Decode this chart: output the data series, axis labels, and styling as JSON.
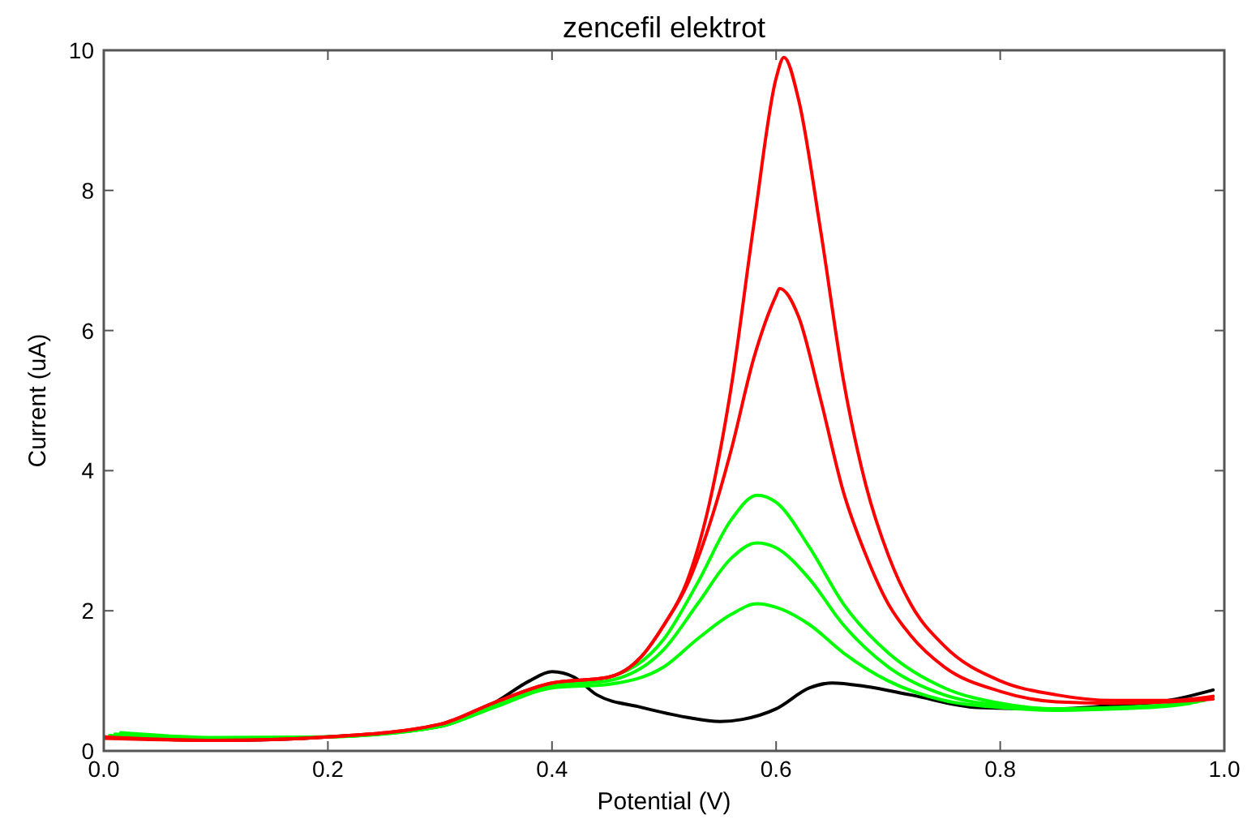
{
  "chart_data": {
    "type": "line",
    "title": "zencefil elektrot",
    "xlabel": "Potential (V)",
    "ylabel": "Current (uA)",
    "xlim": [
      0,
      1
    ],
    "xticks": [
      {
        "value": 0,
        "label": "0.0"
      },
      0.2,
      0.4,
      0.6,
      0.8,
      {
        "value": 1,
        "label": "1.0"
      }
    ],
    "ylim": [
      0,
      10
    ],
    "yticks": [
      0,
      2,
      4,
      6,
      8,
      10
    ],
    "grid": false,
    "line_style": "solid",
    "series": [
      {
        "color": "#000000",
        "x": [
          0,
          0.1,
          0.2,
          0.3,
          0.35,
          0.38,
          0.4,
          0.42,
          0.44,
          0.48,
          0.52,
          0.55,
          0.57,
          0.6,
          0.63,
          0.65,
          0.68,
          0.72,
          0.78,
          0.85,
          0.9,
          0.95,
          0.99
        ],
        "values": [
          0.2,
          0.15,
          0.2,
          0.35,
          0.7,
          1.0,
          1.13,
          1.05,
          0.8,
          0.62,
          0.48,
          0.42,
          0.45,
          0.6,
          0.9,
          0.97,
          0.92,
          0.8,
          0.62,
          0.6,
          0.65,
          0.72,
          0.87
        ]
      },
      {
        "color": "#00ff00",
        "x": [
          0.005,
          0.1,
          0.2,
          0.3,
          0.35,
          0.4,
          0.45,
          0.5,
          0.53,
          0.56,
          0.583,
          0.6,
          0.63,
          0.66,
          0.7,
          0.75,
          0.8,
          0.85,
          0.9,
          0.95,
          0.982
        ],
        "values": [
          0.22,
          0.17,
          0.2,
          0.35,
          0.65,
          0.95,
          1.05,
          1.6,
          2.4,
          3.3,
          3.65,
          3.55,
          2.9,
          2.1,
          1.4,
          0.9,
          0.68,
          0.6,
          0.62,
          0.66,
          0.72
        ]
      },
      {
        "color": "#00ff00",
        "x": [
          0.01,
          0.1,
          0.2,
          0.3,
          0.35,
          0.4,
          0.45,
          0.5,
          0.53,
          0.56,
          0.583,
          0.6,
          0.63,
          0.66,
          0.7,
          0.75,
          0.8,
          0.85,
          0.9,
          0.95,
          0.976
        ],
        "values": [
          0.24,
          0.18,
          0.2,
          0.35,
          0.65,
          0.93,
          1.0,
          1.45,
          2.1,
          2.75,
          2.97,
          2.9,
          2.45,
          1.8,
          1.2,
          0.8,
          0.65,
          0.6,
          0.61,
          0.65,
          0.7
        ]
      },
      {
        "color": "#00ff00",
        "x": [
          0.015,
          0.1,
          0.2,
          0.3,
          0.35,
          0.4,
          0.45,
          0.5,
          0.53,
          0.56,
          0.583,
          0.6,
          0.63,
          0.66,
          0.7,
          0.75,
          0.8,
          0.85,
          0.9,
          0.95,
          0.97
        ],
        "values": [
          0.26,
          0.19,
          0.2,
          0.35,
          0.63,
          0.9,
          0.95,
          1.2,
          1.6,
          1.95,
          2.1,
          2.05,
          1.8,
          1.4,
          1.0,
          0.72,
          0.62,
          0.58,
          0.6,
          0.64,
          0.68
        ]
      },
      {
        "color": "#ff0000",
        "x": [
          0,
          0.1,
          0.2,
          0.3,
          0.35,
          0.4,
          0.45,
          0.48,
          0.5,
          0.52,
          0.54,
          0.56,
          0.58,
          0.6,
          0.607,
          0.62,
          0.64,
          0.66,
          0.68,
          0.7,
          0.72,
          0.75,
          0.8,
          0.85,
          0.9,
          0.95,
          0.99
        ],
        "values": [
          0.2,
          0.15,
          0.2,
          0.38,
          0.7,
          0.97,
          1.05,
          1.35,
          1.8,
          2.4,
          3.5,
          5.2,
          7.5,
          9.6,
          9.9,
          9.3,
          7.4,
          5.3,
          3.8,
          2.8,
          2.1,
          1.5,
          1.0,
          0.8,
          0.72,
          0.72,
          0.78
        ]
      },
      {
        "color": "#ff0000",
        "x": [
          0,
          0.1,
          0.2,
          0.3,
          0.35,
          0.4,
          0.45,
          0.48,
          0.5,
          0.52,
          0.54,
          0.56,
          0.58,
          0.6,
          0.603,
          0.62,
          0.64,
          0.66,
          0.68,
          0.7,
          0.72,
          0.75,
          0.8,
          0.85,
          0.9,
          0.95,
          0.99
        ],
        "values": [
          0.18,
          0.15,
          0.2,
          0.38,
          0.7,
          0.97,
          1.05,
          1.35,
          1.8,
          2.35,
          3.2,
          4.3,
          5.6,
          6.5,
          6.6,
          6.2,
          5.0,
          3.7,
          2.8,
          2.1,
          1.65,
          1.2,
          0.85,
          0.7,
          0.68,
          0.7,
          0.74
        ]
      }
    ]
  }
}
